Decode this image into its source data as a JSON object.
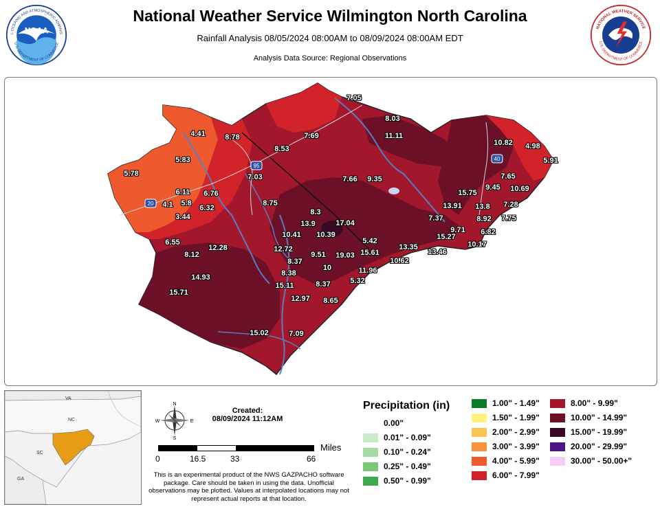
{
  "header": {
    "title": "National Weather Service Wilmington North Carolina",
    "subtitle": "Rainfall Analysis 08/05/2024 08:00AM to 08/09/2024 08:00AM EDT",
    "source": "Analysis Data Source: Regional Observations",
    "noaa_logo_text": "NOAA",
    "noaa_ring_text": "NATIONAL OCEANIC AND ATMOSPHERIC ADMINISTRATION",
    "noaa_ring_bottom": "U.S. DEPARTMENT OF COMMERCE",
    "nws_ring_text": "NATIONAL WEATHER SERVICE",
    "nws_ring_bottom": "U.S. DEPARTMENT OF COMMERCE"
  },
  "map": {
    "highway_labels": [
      "20",
      "95",
      "40"
    ],
    "values": [
      "7.05",
      "8.03",
      "11.11",
      "4.41",
      "8.78",
      "7.69",
      "8.53",
      "10.82",
      "4.98",
      "5.91",
      "5.83",
      "7.03",
      "7.66",
      "9.35",
      "5.78",
      "6.11",
      "6.76",
      "7.65",
      "9.45",
      "10.69",
      "15.75",
      "4.1",
      "5.8",
      "6.32",
      "8.75",
      "13.91",
      "13.8",
      "7.28",
      "3.44",
      "8.3",
      "7.37",
      "8.92",
      "7.75",
      "13.9",
      "17.04",
      "9.71",
      "6.82",
      "10.41",
      "10.39",
      "15.27",
      "6.55",
      "12.28",
      "5.42",
      "10.17",
      "12.72",
      "13.35",
      "8.12",
      "9.51",
      "19.03",
      "15.61",
      "13.46",
      "8.37",
      "10",
      "10.62",
      "14.93",
      "8.38",
      "11.96",
      "15.11",
      "8.37",
      "5.32",
      "15.71",
      "12.97",
      "8.65",
      "15.02",
      "7.09"
    ]
  },
  "inset": {
    "state_labels": [
      "VA",
      "NC",
      "SC",
      "GA"
    ]
  },
  "created": {
    "label": "Created:",
    "value": "08/09/2024 11:12AM"
  },
  "compass": {
    "n": "N",
    "s": "S",
    "e": "E",
    "w": "W"
  },
  "scale": {
    "ticks": [
      "0",
      "16.5",
      "33",
      "66"
    ],
    "unit": "Miles"
  },
  "disclaimer": "This is an experimental product of the NWS GAZPACHO software package. Care should be taken in using the data. Unofficial observations may be plotted. Values at interpolated locations may not represent actual reports at that location.",
  "legend": {
    "title": "Precipitation (in)",
    "items": [
      {
        "label": "0.00\"",
        "color": "#ffffff"
      },
      {
        "label": "0.01\" - 0.09\"",
        "color": "#c9ebc9"
      },
      {
        "label": "0.10\" - 0.24\"",
        "color": "#a2dca2"
      },
      {
        "label": "0.25\" - 0.49\"",
        "color": "#77c877"
      },
      {
        "label": "0.50\" - 0.99\"",
        "color": "#3fa94f"
      },
      {
        "label": "1.00\" - 1.49\"",
        "color": "#0f7a2d"
      },
      {
        "label": "1.50\" - 1.99\"",
        "color": "#fff27f"
      },
      {
        "label": "2.00\" - 2.99\"",
        "color": "#f9c552"
      },
      {
        "label": "3.00\" - 3.99\"",
        "color": "#f7913a"
      },
      {
        "label": "4.00\" - 5.99\"",
        "color": "#ee5a2d"
      },
      {
        "label": "6.00\" - 7.99\"",
        "color": "#d2232a"
      },
      {
        "label": "8.00\" - 9.99\"",
        "color": "#a3172c"
      },
      {
        "label": "10.00\" - 14.99\"",
        "color": "#6b1027"
      },
      {
        "label": "15.00\" - 19.99\"",
        "color": "#3a0a24"
      },
      {
        "label": "20.00\" - 29.99\"",
        "color": "#4e1387"
      },
      {
        "label": "30.00\" - 50.00+\"",
        "color": "#f5ccf5"
      }
    ]
  }
}
